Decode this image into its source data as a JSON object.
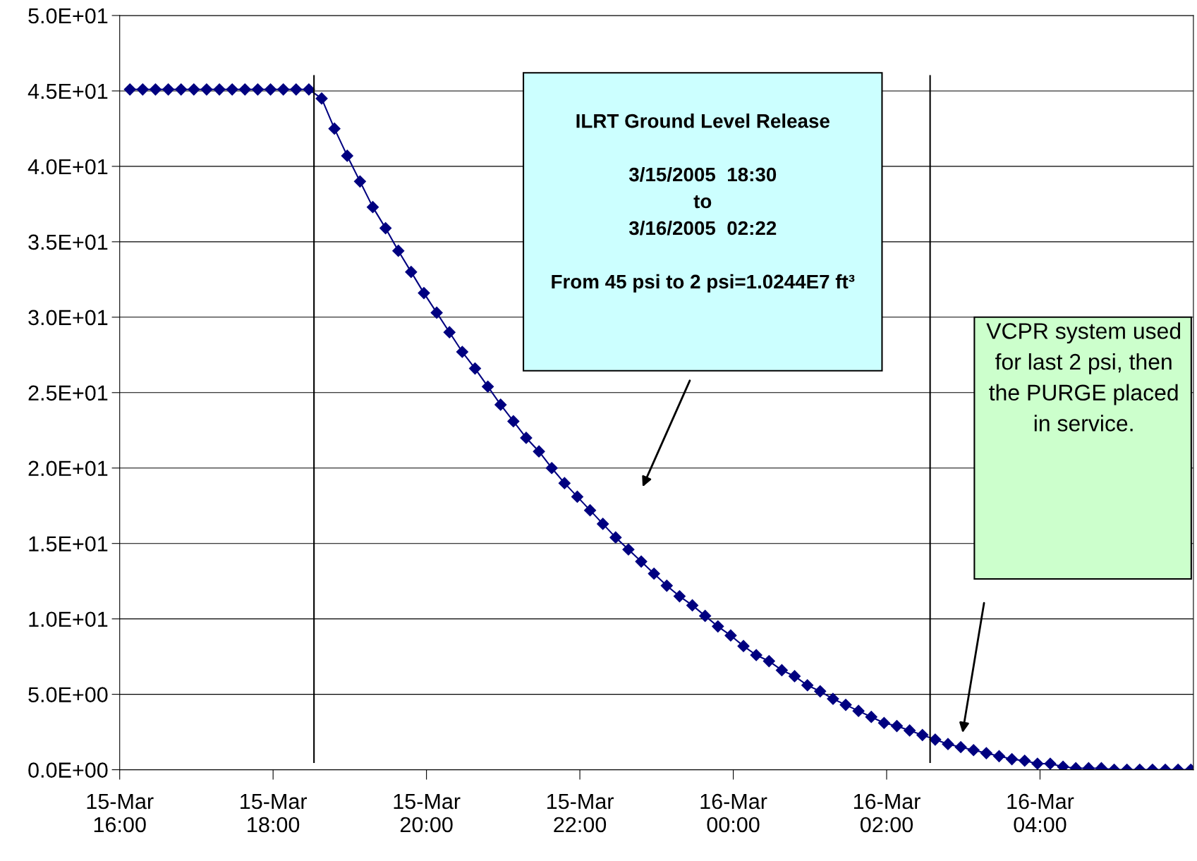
{
  "chart_data": {
    "type": "line",
    "x": [
      "2005-03-15T16:08",
      "2005-03-15T16:18",
      "2005-03-15T16:28",
      "2005-03-15T16:38",
      "2005-03-15T16:48",
      "2005-03-15T16:58",
      "2005-03-15T17:08",
      "2005-03-15T17:18",
      "2005-03-15T17:28",
      "2005-03-15T17:38",
      "2005-03-15T17:48",
      "2005-03-15T17:58",
      "2005-03-15T18:08",
      "2005-03-15T18:18",
      "2005-03-15T18:28",
      "2005-03-15T18:38",
      "2005-03-15T18:48",
      "2005-03-15T18:58",
      "2005-03-15T19:08",
      "2005-03-15T19:18",
      "2005-03-15T19:28",
      "2005-03-15T19:38",
      "2005-03-15T19:48",
      "2005-03-15T19:58",
      "2005-03-15T20:08",
      "2005-03-15T20:18",
      "2005-03-15T20:28",
      "2005-03-15T20:38",
      "2005-03-15T20:48",
      "2005-03-15T20:58",
      "2005-03-15T21:08",
      "2005-03-15T21:18",
      "2005-03-15T21:28",
      "2005-03-15T21:38",
      "2005-03-15T21:48",
      "2005-03-15T21:58",
      "2005-03-15T22:08",
      "2005-03-15T22:18",
      "2005-03-15T22:28",
      "2005-03-15T22:38",
      "2005-03-15T22:48",
      "2005-03-15T22:58",
      "2005-03-15T23:08",
      "2005-03-15T23:18",
      "2005-03-15T23:28",
      "2005-03-15T23:38",
      "2005-03-15T23:48",
      "2005-03-15T23:58",
      "2005-03-16T00:08",
      "2005-03-16T00:18",
      "2005-03-16T00:28",
      "2005-03-16T00:38",
      "2005-03-16T00:48",
      "2005-03-16T00:58",
      "2005-03-16T01:08",
      "2005-03-16T01:18",
      "2005-03-16T01:28",
      "2005-03-16T01:38",
      "2005-03-16T01:48",
      "2005-03-16T01:58",
      "2005-03-16T02:08",
      "2005-03-16T02:18",
      "2005-03-16T02:28",
      "2005-03-16T02:38",
      "2005-03-16T02:48",
      "2005-03-16T02:58",
      "2005-03-16T03:08",
      "2005-03-16T03:18",
      "2005-03-16T03:28",
      "2005-03-16T03:38",
      "2005-03-16T03:48",
      "2005-03-16T03:58",
      "2005-03-16T04:08",
      "2005-03-16T04:18",
      "2005-03-16T04:28",
      "2005-03-16T04:38",
      "2005-03-16T04:48",
      "2005-03-16T04:58",
      "2005-03-16T05:08",
      "2005-03-16T05:18",
      "2005-03-16T05:28",
      "2005-03-16T05:38",
      "2005-03-16T05:48",
      "2005-03-16T05:58"
    ],
    "series": [
      {
        "color": "#000080",
        "values": [
          45.1,
          45.1,
          45.1,
          45.1,
          45.1,
          45.1,
          45.1,
          45.1,
          45.1,
          45.1,
          45.1,
          45.1,
          45.1,
          45.1,
          45.1,
          44.5,
          42.5,
          40.7,
          39.0,
          37.3,
          35.9,
          34.4,
          33.0,
          31.6,
          30.3,
          29.0,
          27.7,
          26.6,
          25.4,
          24.2,
          23.1,
          22.0,
          21.1,
          20.0,
          19.0,
          18.1,
          17.2,
          16.3,
          15.4,
          14.6,
          13.8,
          13.0,
          12.2,
          11.5,
          10.9,
          10.2,
          9.5,
          8.9,
          8.2,
          7.6,
          7.2,
          6.6,
          6.2,
          5.6,
          5.2,
          4.7,
          4.3,
          3.9,
          3.5,
          3.1,
          2.9,
          2.6,
          2.3,
          2.0,
          1.7,
          1.5,
          1.3,
          1.1,
          0.9,
          0.7,
          0.6,
          0.4,
          0.4,
          0.2,
          0.1,
          0.1,
          0.1,
          0,
          0,
          0,
          0,
          0,
          0,
          0
        ]
      }
    ],
    "xlim": [
      "2005-03-15T16:00",
      "2005-03-16T06:00"
    ],
    "xticks": [
      {
        "value": "2005-03-15T16:00",
        "label": "15-Mar\n16:00"
      },
      {
        "value": "2005-03-15T18:00",
        "label": "15-Mar\n18:00"
      },
      {
        "value": "2005-03-15T20:00",
        "label": "15-Mar\n20:00"
      },
      {
        "value": "2005-03-15T22:00",
        "label": "15-Mar\n22:00"
      },
      {
        "value": "2005-03-16T00:00",
        "label": "16-Mar\n00:00"
      },
      {
        "value": "2005-03-16T02:00",
        "label": "16-Mar\n02:00"
      },
      {
        "value": "2005-03-16T04:00",
        "label": "16-Mar\n04:00"
      }
    ],
    "ylim": [
      0,
      50
    ],
    "yticks": [
      {
        "value": 0,
        "label": "0.0E+00"
      },
      {
        "value": 5,
        "label": "5.0E+00"
      },
      {
        "value": 10,
        "label": "1.0E+01"
      },
      {
        "value": 15,
        "label": "1.5E+01"
      },
      {
        "value": 20,
        "label": "2.0E+01"
      },
      {
        "value": 25,
        "label": "2.5E+01"
      },
      {
        "value": 30,
        "label": "3.0E+01"
      },
      {
        "value": 35,
        "label": "3.5E+01"
      },
      {
        "value": 40,
        "label": "4.0E+01"
      },
      {
        "value": 45,
        "label": "4.5E+01"
      },
      {
        "value": 50,
        "label": "5.0E+01"
      }
    ],
    "ref_lines": [
      {
        "axis": "x",
        "value": "2005-03-15T18:32",
        "color": "#000000"
      },
      {
        "axis": "x",
        "value": "2005-03-16T02:34",
        "color": "#000000"
      }
    ],
    "annotations": [
      "ILRT Ground Level Release\n\n3/15/2005  18:30\nto\n3/16/2005  02:22\n\nFrom 45 psi to 2 psi=1.0244E7 ft³",
      "VCPR system used\nfor last 2 psi, then\nthe PURGE placed\nin service."
    ],
    "grid": "y",
    "marker": "diamond",
    "line_style": "solid"
  }
}
